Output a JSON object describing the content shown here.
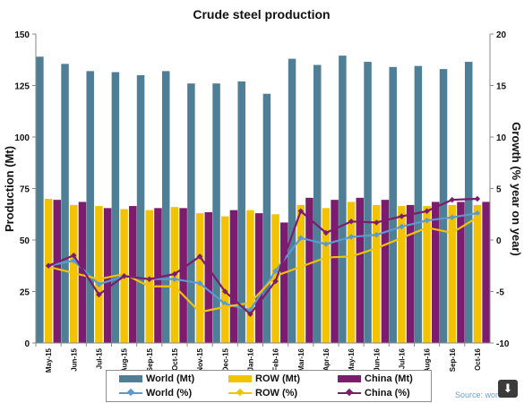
{
  "chart_data": {
    "type": "bar",
    "title": "Crude steel production",
    "ylabel": "Production (Mt)",
    "y2label": "Growth (% year on year)",
    "ylim": [
      0,
      150
    ],
    "y2lim": [
      -10,
      20
    ],
    "yticks": [
      "0",
      "25",
      "50",
      "75",
      "100",
      "125",
      "150"
    ],
    "y2ticks": [
      "-10",
      "-5",
      "0",
      "5",
      "10",
      "15",
      "20"
    ],
    "categories": [
      "May-15",
      "Jun-15",
      "Jul-15",
      "Aug-15",
      "Sep-15",
      "Oct-15",
      "Nov-15",
      "Dec-15",
      "Jan-16",
      "Feb-16",
      "Mar-16",
      "Apr-16",
      "May-16",
      "Jun-16",
      "Jul-16",
      "Aug-16",
      "Sep-16",
      "Oct-16"
    ],
    "grid": false,
    "legend_position": "bottom",
    "bar_series": [
      {
        "name": "World (Mt)",
        "color": "#4f7f96",
        "values": [
          139,
          135.5,
          132,
          131.5,
          130,
          132,
          126,
          126,
          127,
          121,
          138,
          135,
          139.5,
          136.5,
          134,
          134.5,
          133,
          136.5
        ]
      },
      {
        "name": "ROW (Mt)",
        "color": "#f3c200",
        "values": [
          70,
          67,
          66.5,
          65,
          64.5,
          66,
          63,
          61.5,
          64.5,
          62.5,
          67,
          65.5,
          68.5,
          67,
          66.5,
          66.5,
          67,
          67
        ]
      },
      {
        "name": "China (Mt)",
        "color": "#7b1c6e",
        "values": [
          69.5,
          68.5,
          65.5,
          66.5,
          65.5,
          65.5,
          63.5,
          64.5,
          63,
          58.5,
          70.5,
          69.5,
          70.5,
          69.5,
          67,
          68.5,
          68.5,
          68.5
        ]
      }
    ],
    "line_series": [
      {
        "name": "World (%)",
        "color": "#5a9ad0",
        "values": [
          -2.5,
          -2.0,
          -4.3,
          -3.5,
          -3.8,
          -3.8,
          -4.2,
          -6.2,
          -6.8,
          -3.0,
          0.2,
          -0.4,
          0.3,
          0.5,
          1.3,
          1.9,
          2.2,
          2.6
        ]
      },
      {
        "name": "ROW (%)",
        "color": "#f3c200",
        "values": [
          -2.6,
          -3.2,
          -3.8,
          -3.3,
          -4.5,
          -4.5,
          -7.0,
          -6.5,
          -6.1,
          -3.5,
          -2.6,
          -1.7,
          -1.6,
          -0.8,
          0.2,
          1.2,
          0.7,
          2.2
        ]
      },
      {
        "name": "China (%)",
        "color": "#7b1c6e",
        "values": [
          -2.5,
          -1.5,
          -5.3,
          -3.5,
          -3.8,
          -3.3,
          -1.6,
          -5.0,
          -7.2,
          -4.0,
          2.8,
          0.7,
          1.8,
          1.7,
          2.3,
          2.8,
          3.9,
          4.0
        ]
      }
    ]
  },
  "legend": {
    "items": [
      {
        "label": "World (Mt)",
        "kind": "bar",
        "color": "#4f7f96"
      },
      {
        "label": "ROW (Mt)",
        "kind": "bar",
        "color": "#f3c200"
      },
      {
        "label": "China (Mt)",
        "kind": "bar",
        "color": "#7b1c6e"
      },
      {
        "label": "World (%)",
        "kind": "line",
        "color": "#5a9ad0"
      },
      {
        "label": "ROW (%)",
        "kind": "line",
        "color": "#f3c200"
      },
      {
        "label": "China (%)",
        "kind": "line",
        "color": "#7b1c6e"
      }
    ]
  },
  "source_text": "Source: world",
  "download_icon": "download-icon"
}
